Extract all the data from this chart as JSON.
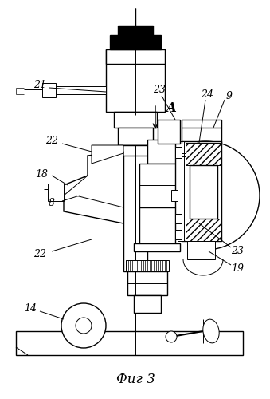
{
  "title": "Фиг 3",
  "bg_color": "#ffffff",
  "line_color": "#000000",
  "lw_thin": 0.7,
  "lw_med": 1.0,
  "lw_thick": 1.5
}
